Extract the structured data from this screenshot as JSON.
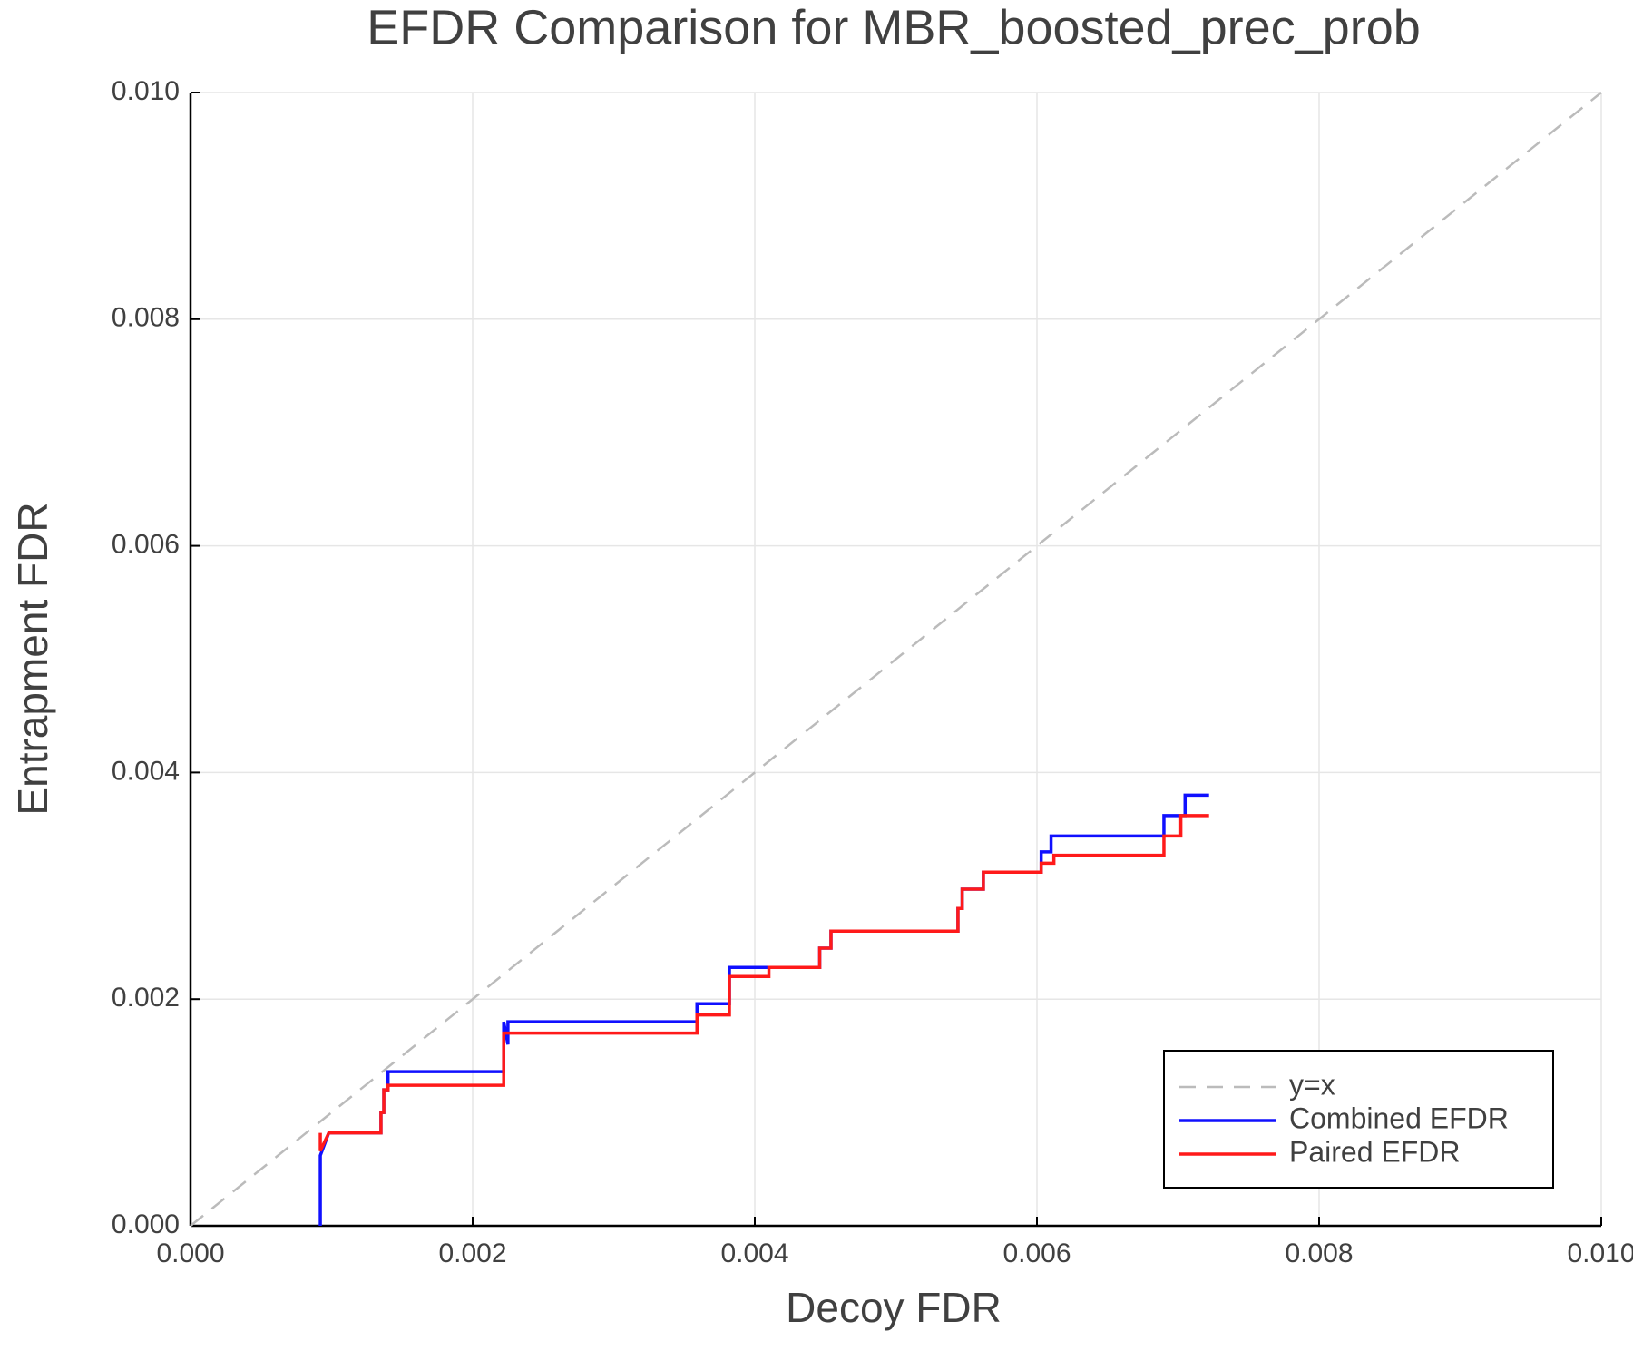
{
  "chart_data": {
    "type": "line",
    "title": "EFDR Comparison for MBR_boosted_prec_prob",
    "xlabel": "Decoy FDR",
    "ylabel": "Entrapment FDR",
    "xlim": [
      0,
      0.01
    ],
    "ylim": [
      0,
      0.01
    ],
    "xticks": [
      {
        "value": 0,
        "label": "0.000"
      },
      0.002,
      0.004,
      0.006,
      0.008,
      {
        "value": 0.01,
        "label": "0.010"
      }
    ],
    "yticks": [
      {
        "value": 0,
        "label": "0.000"
      },
      0.002,
      0.004,
      0.006,
      0.008,
      {
        "value": 0.01,
        "label": "0.010"
      }
    ],
    "grid": true,
    "legend": "lower right",
    "series": [
      {
        "name": "y=x",
        "color": "#bbbbbb",
        "dashed": true,
        "x": [
          0,
          0.01
        ],
        "values": [
          0,
          0.01
        ]
      },
      {
        "name": "Combined EFDR",
        "color": "#1010ff",
        "x": [
          0.00092,
          0.00092,
          0.00098,
          0.00135,
          0.00135,
          0.00137,
          0.00137,
          0.0014,
          0.0014,
          0.00222,
          0.00222,
          0.00225,
          0.00225,
          0.00359,
          0.00359,
          0.00382,
          0.00382,
          0.00446,
          0.00446,
          0.00454,
          0.00454,
          0.00544,
          0.00544,
          0.00547,
          0.00547,
          0.00562,
          0.00562,
          0.00603,
          0.00603,
          0.0061,
          0.0061,
          0.0069,
          0.0069,
          0.00705,
          0.00705,
          0.00722
        ],
        "values": [
          0,
          0.00062,
          0.00082,
          0.00082,
          0.001,
          0.001,
          0.0012,
          0.0012,
          0.00136,
          0.00136,
          0.0018,
          0.0016,
          0.0018,
          0.0018,
          0.00196,
          0.00196,
          0.00228,
          0.00228,
          0.00245,
          0.00245,
          0.0026,
          0.0026,
          0.0028,
          0.0028,
          0.00297,
          0.00297,
          0.00312,
          0.00312,
          0.0033,
          0.0033,
          0.00344,
          0.00344,
          0.00362,
          0.00362,
          0.0038,
          0.0038
        ]
      },
      {
        "name": "Paired EFDR",
        "color": "#ff1a1a",
        "x": [
          0.00092,
          0.00092,
          0.00098,
          0.00135,
          0.00135,
          0.00137,
          0.00137,
          0.0014,
          0.0014,
          0.00222,
          0.00222,
          0.00359,
          0.00359,
          0.00382,
          0.00382,
          0.0041,
          0.0041,
          0.00446,
          0.00446,
          0.00454,
          0.00454,
          0.00544,
          0.00544,
          0.00547,
          0.00547,
          0.00562,
          0.00562,
          0.00603,
          0.00603,
          0.00612,
          0.00612,
          0.0069,
          0.0069,
          0.00702,
          0.00702,
          0.00722
        ],
        "values": [
          0.00082,
          0.00066,
          0.00082,
          0.00082,
          0.001,
          0.001,
          0.0012,
          0.0012,
          0.00124,
          0.00124,
          0.0017,
          0.0017,
          0.00186,
          0.00186,
          0.0022,
          0.0022,
          0.00228,
          0.00228,
          0.00245,
          0.00245,
          0.0026,
          0.0026,
          0.0028,
          0.0028,
          0.00297,
          0.00297,
          0.00312,
          0.00312,
          0.0032,
          0.0032,
          0.00327,
          0.00327,
          0.00344,
          0.00344,
          0.00362,
          0.00362
        ]
      }
    ]
  }
}
